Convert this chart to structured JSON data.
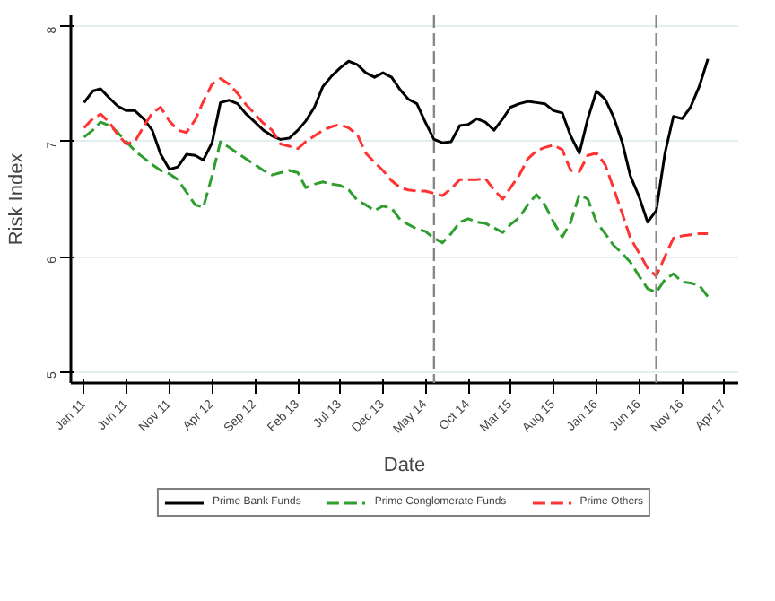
{
  "chart_data": {
    "type": "line",
    "xlabel": "Date",
    "ylabel": "Risk Index",
    "x": [
      "2011-01",
      "2011-02",
      "2011-03",
      "2011-04",
      "2011-05",
      "2011-06",
      "2011-07",
      "2011-08",
      "2011-09",
      "2011-10",
      "2011-11",
      "2011-12",
      "2012-01",
      "2012-02",
      "2012-03",
      "2012-04",
      "2012-05",
      "2012-06",
      "2012-07",
      "2012-08",
      "2012-09",
      "2012-10",
      "2012-11",
      "2012-12",
      "2013-01",
      "2013-02",
      "2013-03",
      "2013-04",
      "2013-05",
      "2013-06",
      "2013-07",
      "2013-08",
      "2013-09",
      "2013-10",
      "2013-11",
      "2013-12",
      "2014-01",
      "2014-02",
      "2014-03",
      "2014-04",
      "2014-05",
      "2014-06",
      "2014-07",
      "2014-08",
      "2014-09",
      "2014-10",
      "2014-11",
      "2014-12",
      "2015-01",
      "2015-02",
      "2015-03",
      "2015-04",
      "2015-05",
      "2015-06",
      "2015-07",
      "2015-08",
      "2015-09",
      "2015-10",
      "2015-11",
      "2015-12",
      "2016-01",
      "2016-02",
      "2016-03",
      "2016-04",
      "2016-05",
      "2016-06",
      "2016-07",
      "2016-08",
      "2016-09",
      "2016-10",
      "2016-11",
      "2016-12",
      "2017-01",
      "2017-02"
    ],
    "series": [
      {
        "name": "Prime Bank Funds",
        "color": "#000000",
        "line_style": "solid",
        "values": [
          7.34,
          7.44,
          7.46,
          7.38,
          7.31,
          7.27,
          7.27,
          7.2,
          7.1,
          6.89,
          6.76,
          6.78,
          6.89,
          6.88,
          6.84,
          6.99,
          7.34,
          7.36,
          7.33,
          7.24,
          7.17,
          7.1,
          7.05,
          7.02,
          7.03,
          7.1,
          7.18,
          7.3,
          7.48,
          7.57,
          7.64,
          7.7,
          7.67,
          7.6,
          7.56,
          7.6,
          7.56,
          7.45,
          7.37,
          7.33,
          7.17,
          7.02,
          6.99,
          7.0,
          7.14,
          7.15,
          7.2,
          7.17,
          7.1,
          7.2,
          7.3,
          7.33,
          7.35,
          7.34,
          7.33,
          7.27,
          7.25,
          7.05,
          6.9,
          7.2,
          7.44,
          7.37,
          7.22,
          7.0,
          6.7,
          6.52,
          6.3,
          6.4,
          6.9,
          7.22,
          7.2,
          7.3,
          7.48,
          7.72
        ]
      },
      {
        "name": "Prime Conglomerate Funds",
        "color": "#2e9e2e",
        "line_style": "dashed",
        "values": [
          7.04,
          7.1,
          7.17,
          7.14,
          7.08,
          7.0,
          6.92,
          6.86,
          6.8,
          6.75,
          6.72,
          6.67,
          6.56,
          6.45,
          6.43,
          6.7,
          7.0,
          6.95,
          6.9,
          6.85,
          6.8,
          6.75,
          6.71,
          6.73,
          6.75,
          6.73,
          6.6,
          6.63,
          6.65,
          6.63,
          6.62,
          6.58,
          6.49,
          6.45,
          6.4,
          6.44,
          6.42,
          6.32,
          6.28,
          6.24,
          6.22,
          6.16,
          6.12,
          6.2,
          6.3,
          6.33,
          6.3,
          6.29,
          6.25,
          6.21,
          6.28,
          6.34,
          6.45,
          6.54,
          6.45,
          6.3,
          6.17,
          6.3,
          6.54,
          6.5,
          6.3,
          6.2,
          6.1,
          6.03,
          5.95,
          5.83,
          5.72,
          5.69,
          5.8,
          5.85,
          5.78,
          5.77,
          5.75,
          5.65
        ]
      },
      {
        "name": "Prime Others",
        "color": "#ff3333",
        "line_style": "dashed",
        "values": [
          7.12,
          7.2,
          7.24,
          7.17,
          7.06,
          6.98,
          7.0,
          7.13,
          7.25,
          7.3,
          7.18,
          7.1,
          7.08,
          7.19,
          7.35,
          7.5,
          7.55,
          7.5,
          7.42,
          7.32,
          7.24,
          7.16,
          7.1,
          6.98,
          6.96,
          6.94,
          7.0,
          7.05,
          7.1,
          7.13,
          7.15,
          7.12,
          7.06,
          6.9,
          6.82,
          6.75,
          6.66,
          6.6,
          6.58,
          6.57,
          6.57,
          6.55,
          6.53,
          6.59,
          6.67,
          6.67,
          6.67,
          6.68,
          6.58,
          6.5,
          6.6,
          6.71,
          6.85,
          6.92,
          6.95,
          6.97,
          6.93,
          6.75,
          6.74,
          6.88,
          6.9,
          6.8,
          6.6,
          6.38,
          6.16,
          6.03,
          5.9,
          5.83,
          6.0,
          6.16,
          6.18,
          6.19,
          6.2,
          6.2
        ]
      }
    ],
    "xlim": [
      "2010-11-15",
      "2017-05-20"
    ],
    "xticks": [
      {
        "value": "2011-01",
        "label": "Jan 11"
      },
      {
        "value": "2011-06",
        "label": "Jun 11"
      },
      {
        "value": "2011-11",
        "label": "Nov 11"
      },
      {
        "value": "2012-04",
        "label": "Apr 12"
      },
      {
        "value": "2012-09",
        "label": "Sep 12"
      },
      {
        "value": "2013-02",
        "label": "Feb 13"
      },
      {
        "value": "2013-07",
        "label": "Jul 13"
      },
      {
        "value": "2013-12",
        "label": "Dec 13"
      },
      {
        "value": "2014-05",
        "label": "May 14"
      },
      {
        "value": "2014-10",
        "label": "Oct 14"
      },
      {
        "value": "2015-03",
        "label": "Mar 15"
      },
      {
        "value": "2015-08",
        "label": "Aug 15"
      },
      {
        "value": "2016-01",
        "label": "Jan 16"
      },
      {
        "value": "2016-06",
        "label": "Jun 16"
      },
      {
        "value": "2016-11",
        "label": "Nov 16"
      },
      {
        "value": "2017-04",
        "label": "Apr 17"
      }
    ],
    "ylim": [
      4.9,
      8.1
    ],
    "yticks": [
      5,
      6,
      7,
      8
    ],
    "grid": "y",
    "legend": "bottom",
    "ref_lines": [
      {
        "axis": "x",
        "value": "2014-06",
        "color": "#888888",
        "line_style": "dashed"
      },
      {
        "axis": "x",
        "value": "2016-08",
        "color": "#888888",
        "line_style": "dashed"
      }
    ]
  }
}
